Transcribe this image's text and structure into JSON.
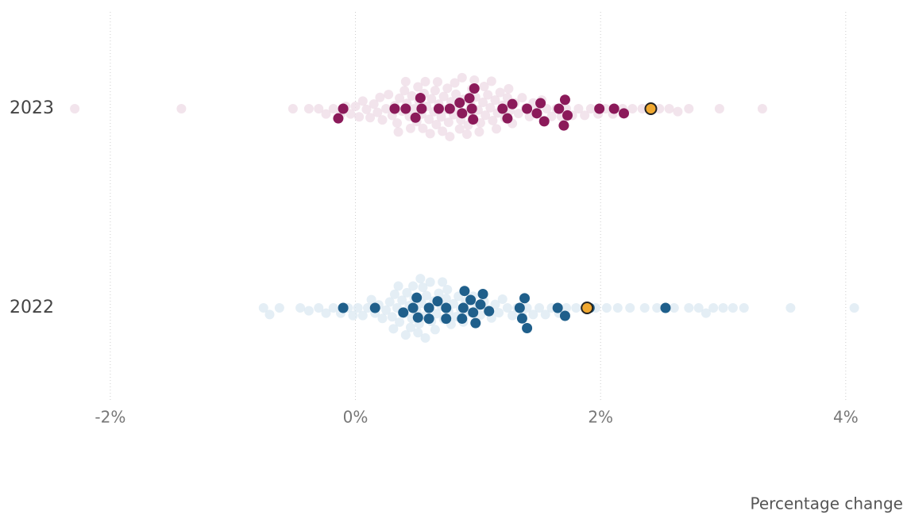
{
  "chart_data": {
    "type": "beeswarm",
    "xlabel": "Percentage change",
    "xlim": [
      -2.9,
      4.5
    ],
    "xticks": [
      {
        "value": -2,
        "label": "-2%"
      },
      {
        "value": 0,
        "label": "0%"
      },
      {
        "value": 2,
        "label": "2%"
      },
      {
        "value": 4,
        "label": "4%"
      }
    ],
    "grid": true,
    "rows": [
      {
        "label": "2023",
        "series": [
          {
            "color": "#eedbe6",
            "values": [
              -2.29,
              -1.42,
              -0.51,
              -0.38,
              -0.3,
              -0.24,
              -0.18,
              -0.12,
              -0.08,
              -0.04,
              0.0,
              0.03,
              0.06,
              0.09,
              0.12,
              0.15,
              0.18,
              0.2,
              0.22,
              0.25,
              0.27,
              0.3,
              0.32,
              0.34,
              0.36,
              0.38,
              0.4,
              0.42,
              0.44,
              0.46,
              0.48,
              0.5,
              0.52,
              0.54,
              0.56,
              0.58,
              0.6,
              0.62,
              0.64,
              0.66,
              0.68,
              0.7,
              0.72,
              0.74,
              0.76,
              0.78,
              0.8,
              0.82,
              0.84,
              0.86,
              0.88,
              0.9,
              0.92,
              0.94,
              0.96,
              0.98,
              1.0,
              1.02,
              1.04,
              1.06,
              1.08,
              1.1,
              1.12,
              1.14,
              1.16,
              1.18,
              1.2,
              1.22,
              1.24,
              1.26,
              1.28,
              1.3,
              1.33,
              1.36,
              1.39,
              1.42,
              1.45,
              1.48,
              1.52,
              1.56,
              1.6,
              1.64,
              1.68,
              1.72,
              1.77,
              1.82,
              1.87,
              1.92,
              1.98,
              2.04,
              2.1,
              2.18,
              2.26,
              2.34,
              2.48,
              2.56,
              2.63,
              2.72,
              2.97,
              3.32,
              0.35,
              0.45,
              0.55,
              0.65,
              0.75,
              0.85,
              0.95,
              1.05,
              1.15,
              1.25,
              0.41,
              0.51,
              0.61,
              0.71,
              0.81,
              0.91,
              1.01,
              1.11,
              0.57,
              0.67,
              0.77,
              0.87,
              0.97
            ]
          },
          {
            "color": "#8b1a5a",
            "values": [
              -0.1,
              -0.14,
              0.41,
              0.54,
              0.32,
              0.49,
              0.53,
              0.68,
              0.77,
              0.95,
              0.87,
              0.96,
              0.93,
              0.85,
              0.97,
              1.2,
              1.24,
              1.28,
              1.4,
              1.48,
              1.51,
              1.54,
              1.66,
              1.73,
              1.71,
              1.7,
              1.99,
              2.11,
              2.19
            ]
          },
          {
            "color": "#f0a830",
            "values": [
              2.41
            ]
          }
        ]
      },
      {
        "label": "2022",
        "series": [
          {
            "color": "#dbe8f2",
            "values": [
              -0.75,
              -0.7,
              -0.62,
              -0.45,
              -0.38,
              -0.3,
              -0.24,
              -0.18,
              -0.12,
              -0.06,
              -0.02,
              0.02,
              0.06,
              0.1,
              0.13,
              0.16,
              0.19,
              0.22,
              0.25,
              0.28,
              0.3,
              0.32,
              0.34,
              0.36,
              0.38,
              0.4,
              0.42,
              0.44,
              0.46,
              0.48,
              0.5,
              0.52,
              0.54,
              0.56,
              0.58,
              0.6,
              0.62,
              0.64,
              0.66,
              0.68,
              0.7,
              0.72,
              0.74,
              0.76,
              0.78,
              0.8,
              0.82,
              0.84,
              0.86,
              0.88,
              0.9,
              0.93,
              0.96,
              0.99,
              1.02,
              1.05,
              1.08,
              1.11,
              1.14,
              1.17,
              1.2,
              1.24,
              1.28,
              1.32,
              1.36,
              1.4,
              1.45,
              1.5,
              1.55,
              1.6,
              1.66,
              1.72,
              1.8,
              1.88,
              1.96,
              2.05,
              2.14,
              2.24,
              2.36,
              2.46,
              2.6,
              2.72,
              2.8,
              2.86,
              2.92,
              3.0,
              3.08,
              3.17,
              3.55,
              4.07,
              0.35,
              0.45,
              0.55,
              0.65,
              0.75,
              0.41,
              0.51,
              0.61,
              0.71,
              0.47,
              0.57,
              0.31,
              0.53
            ]
          },
          {
            "color": "#1f5f8b",
            "values": [
              -0.1,
              0.16,
              0.47,
              0.51,
              0.39,
              0.5,
              0.6,
              0.6,
              0.67,
              0.74,
              0.74,
              0.88,
              0.87,
              0.94,
              0.96,
              1.02,
              1.09,
              0.98,
              1.04,
              0.89,
              1.34,
              1.36,
              1.38,
              1.4,
              1.65,
              1.71,
              1.91,
              2.53
            ]
          },
          {
            "color": "#f0a830",
            "values": [
              1.89
            ]
          }
        ]
      }
    ]
  }
}
